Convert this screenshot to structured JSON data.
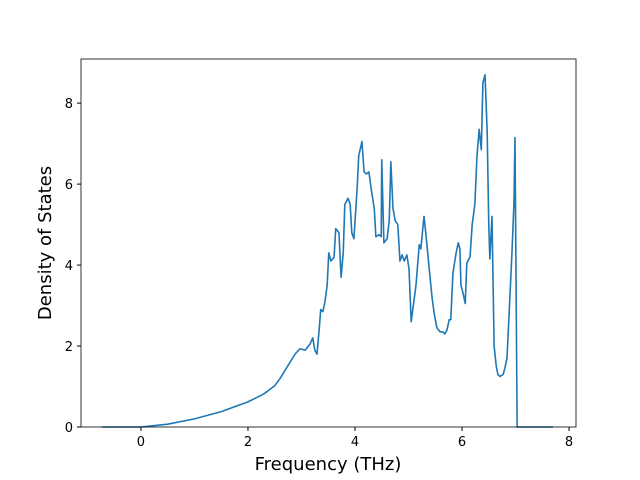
{
  "chart_data": {
    "type": "line",
    "x_label": "Frequency (THz)",
    "y_label": "Density of States",
    "xlim": [
      -1.12,
      8.13
    ],
    "ylim": [
      0,
      9.09
    ],
    "xticks": [
      0,
      2,
      4,
      6,
      8
    ],
    "yticks": [
      0,
      2,
      4,
      6,
      8
    ],
    "grid": false,
    "x": [
      -0.73,
      0,
      0.5,
      1,
      1.5,
      2,
      2.3,
      2.5,
      2.6,
      2.88,
      2.97,
      3.07,
      3.16,
      3.21,
      3.25,
      3.29,
      3.33,
      3.36,
      3.4,
      3.44,
      3.48,
      3.51,
      3.55,
      3.61,
      3.64,
      3.7,
      3.74,
      3.78,
      3.81,
      3.87,
      3.91,
      3.94,
      3.98,
      4.04,
      4.07,
      4.13,
      4.17,
      4.21,
      4.26,
      4.3,
      4.36,
      4.39,
      4.45,
      4.49,
      4.5,
      4.54,
      4.6,
      4.64,
      4.67,
      4.71,
      4.75,
      4.8,
      4.84,
      4.88,
      4.92,
      4.97,
      5.01,
      5.05,
      5.1,
      5.14,
      5.2,
      5.23,
      5.29,
      5.33,
      5.38,
      5.44,
      5.48,
      5.53,
      5.59,
      5.64,
      5.68,
      5.72,
      5.76,
      5.79,
      5.83,
      5.89,
      5.93,
      5.96,
      5.98,
      6.02,
      6.06,
      6.09,
      6.15,
      6.19,
      6.24,
      6.28,
      6.32,
      6.36,
      6.39,
      6.43,
      6.47,
      6.5,
      6.52,
      6.56,
      6.6,
      6.64,
      6.67,
      6.71,
      6.77,
      6.8,
      6.84,
      6.88,
      6.93,
      6.97,
      6.99,
      7.03,
      7.7
    ],
    "series": [
      {
        "color": "#1f77b4",
        "values": [
          0,
          0,
          0.07,
          0.2,
          0.38,
          0.62,
          0.82,
          1.02,
          1.2,
          1.8,
          1.93,
          1.9,
          2.05,
          2.2,
          1.9,
          1.8,
          2.4,
          2.9,
          2.85,
          3.1,
          3.5,
          4.3,
          4.1,
          4.2,
          4.9,
          4.8,
          3.7,
          4.3,
          5.5,
          5.65,
          5.5,
          4.8,
          4.65,
          5.9,
          6.7,
          7.05,
          6.3,
          6.25,
          6.3,
          5.9,
          5.4,
          4.7,
          4.75,
          4.7,
          6.6,
          4.55,
          4.65,
          5.1,
          6.55,
          5.4,
          5.1,
          5.0,
          4.1,
          4.25,
          4.1,
          4.25,
          3.9,
          2.6,
          3.1,
          3.5,
          4.5,
          4.4,
          5.2,
          4.7,
          4.0,
          3.2,
          2.8,
          2.45,
          2.35,
          2.35,
          2.3,
          2.4,
          2.65,
          2.65,
          3.8,
          4.3,
          4.55,
          4.4,
          3.5,
          3.3,
          3.05,
          4.05,
          4.2,
          5.0,
          5.5,
          6.7,
          7.35,
          6.85,
          8.5,
          8.7,
          7.3,
          5.0,
          4.15,
          5.2,
          2.0,
          1.5,
          1.3,
          1.25,
          1.3,
          1.45,
          1.7,
          2.8,
          4.2,
          5.5,
          7.15,
          0,
          0
        ]
      }
    ]
  }
}
